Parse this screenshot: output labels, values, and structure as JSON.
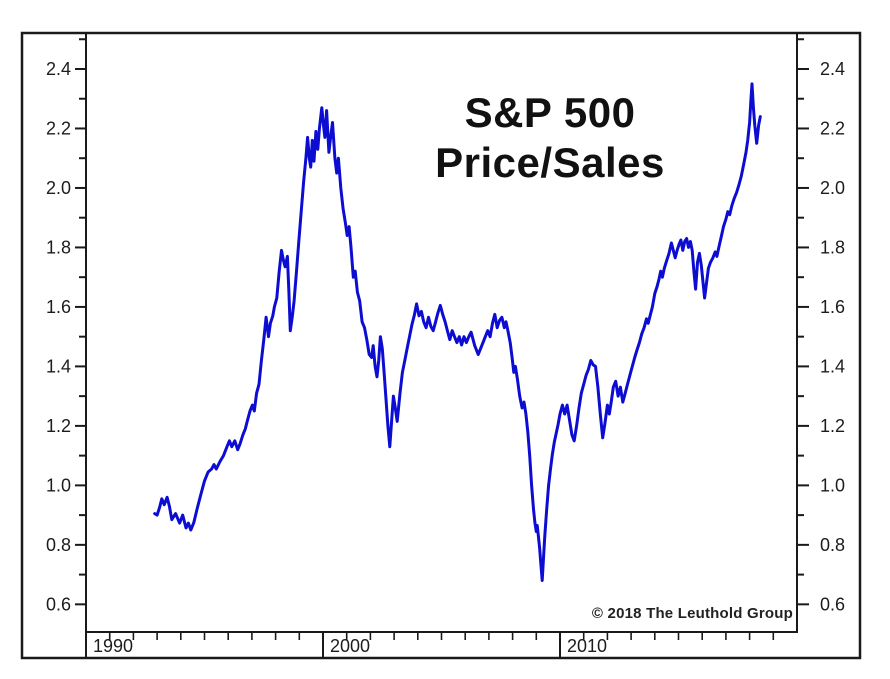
{
  "title": {
    "line1": "S&P 500",
    "line2": "Price/Sales"
  },
  "copyright": "© 2018 The Leuthold Group",
  "colors": {
    "line": "#0d0dd2",
    "frame": "#1a1a1a",
    "text": "#1c1c1c",
    "background": "#ffffff"
  },
  "chart_data": {
    "type": "line",
    "title": "S&P 500 Price/Sales",
    "series_name": "S&P 500 Price/Sales ratio",
    "grid": false,
    "legend": "none",
    "x_axis": {
      "style": "calendar-strip",
      "range_years": [
        1990,
        2020
      ],
      "year_tick_step": 1,
      "decades": [
        {
          "year": 1990,
          "label": "1990"
        },
        {
          "year": 2000,
          "label": "2000"
        },
        {
          "year": 2010,
          "label": "2010"
        }
      ]
    },
    "y_axis": {
      "sides": [
        "left",
        "right"
      ],
      "major_ticks": [
        0.6,
        0.8,
        1.0,
        1.2,
        1.4,
        1.6,
        1.8,
        2.0,
        2.2,
        2.4
      ],
      "minor_tick_step": 0.1,
      "visible_range": [
        0.507,
        2.521
      ],
      "label_decimals": 1
    },
    "points": [
      [
        1992.9,
        0.905
      ],
      [
        1993.0,
        0.9
      ],
      [
        1993.1,
        0.925
      ],
      [
        1993.2,
        0.955
      ],
      [
        1993.3,
        0.935
      ],
      [
        1993.42,
        0.96
      ],
      [
        1993.52,
        0.93
      ],
      [
        1993.62,
        0.885
      ],
      [
        1993.78,
        0.905
      ],
      [
        1993.95,
        0.873
      ],
      [
        1994.08,
        0.9
      ],
      [
        1994.22,
        0.857
      ],
      [
        1994.32,
        0.873
      ],
      [
        1994.42,
        0.85
      ],
      [
        1994.55,
        0.875
      ],
      [
        1994.7,
        0.925
      ],
      [
        1994.85,
        0.97
      ],
      [
        1995.0,
        1.015
      ],
      [
        1995.15,
        1.045
      ],
      [
        1995.3,
        1.055
      ],
      [
        1995.4,
        1.07
      ],
      [
        1995.5,
        1.055
      ],
      [
        1995.65,
        1.08
      ],
      [
        1995.8,
        1.1
      ],
      [
        1995.95,
        1.13
      ],
      [
        1996.05,
        1.15
      ],
      [
        1996.15,
        1.13
      ],
      [
        1996.28,
        1.15
      ],
      [
        1996.4,
        1.12
      ],
      [
        1996.5,
        1.14
      ],
      [
        1996.62,
        1.17
      ],
      [
        1996.72,
        1.19
      ],
      [
        1996.82,
        1.22
      ],
      [
        1996.92,
        1.25
      ],
      [
        1997.02,
        1.27
      ],
      [
        1997.1,
        1.25
      ],
      [
        1997.2,
        1.31
      ],
      [
        1997.3,
        1.34
      ],
      [
        1997.4,
        1.42
      ],
      [
        1997.5,
        1.49
      ],
      [
        1997.6,
        1.565
      ],
      [
        1997.7,
        1.5
      ],
      [
        1997.78,
        1.545
      ],
      [
        1997.88,
        1.57
      ],
      [
        1997.95,
        1.6
      ],
      [
        1998.05,
        1.63
      ],
      [
        1998.15,
        1.72
      ],
      [
        1998.25,
        1.79
      ],
      [
        1998.32,
        1.76
      ],
      [
        1998.4,
        1.735
      ],
      [
        1998.5,
        1.77
      ],
      [
        1998.56,
        1.65
      ],
      [
        1998.62,
        1.52
      ],
      [
        1998.7,
        1.565
      ],
      [
        1998.78,
        1.62
      ],
      [
        1998.88,
        1.72
      ],
      [
        1998.98,
        1.82
      ],
      [
        1999.08,
        1.92
      ],
      [
        1999.18,
        2.02
      ],
      [
        1999.28,
        2.1
      ],
      [
        1999.35,
        2.17
      ],
      [
        1999.42,
        2.1
      ],
      [
        1999.48,
        2.07
      ],
      [
        1999.55,
        2.16
      ],
      [
        1999.62,
        2.09
      ],
      [
        1999.7,
        2.19
      ],
      [
        1999.78,
        2.13
      ],
      [
        1999.85,
        2.2
      ],
      [
        1999.95,
        2.27
      ],
      [
        2000.02,
        2.21
      ],
      [
        2000.08,
        2.17
      ],
      [
        2000.15,
        2.26
      ],
      [
        2000.25,
        2.12
      ],
      [
        2000.32,
        2.17
      ],
      [
        2000.4,
        2.22
      ],
      [
        2000.5,
        2.1
      ],
      [
        2000.58,
        2.05
      ],
      [
        2000.65,
        2.1
      ],
      [
        2000.75,
        2.0
      ],
      [
        2000.85,
        1.93
      ],
      [
        2000.95,
        1.88
      ],
      [
        2001.02,
        1.84
      ],
      [
        2001.1,
        1.87
      ],
      [
        2001.18,
        1.8
      ],
      [
        2001.28,
        1.7
      ],
      [
        2001.36,
        1.72
      ],
      [
        2001.45,
        1.65
      ],
      [
        2001.55,
        1.62
      ],
      [
        2001.65,
        1.55
      ],
      [
        2001.75,
        1.53
      ],
      [
        2001.85,
        1.49
      ],
      [
        2001.95,
        1.44
      ],
      [
        2002.05,
        1.43
      ],
      [
        2002.12,
        1.47
      ],
      [
        2002.2,
        1.4
      ],
      [
        2002.28,
        1.365
      ],
      [
        2002.35,
        1.42
      ],
      [
        2002.42,
        1.5
      ],
      [
        2002.5,
        1.46
      ],
      [
        2002.58,
        1.38
      ],
      [
        2002.66,
        1.29
      ],
      [
        2002.74,
        1.2
      ],
      [
        2002.82,
        1.13
      ],
      [
        2002.9,
        1.22
      ],
      [
        2002.97,
        1.3
      ],
      [
        2003.05,
        1.26
      ],
      [
        2003.13,
        1.215
      ],
      [
        2003.25,
        1.31
      ],
      [
        2003.35,
        1.38
      ],
      [
        2003.45,
        1.42
      ],
      [
        2003.55,
        1.46
      ],
      [
        2003.65,
        1.5
      ],
      [
        2003.75,
        1.54
      ],
      [
        2003.85,
        1.57
      ],
      [
        2003.95,
        1.61
      ],
      [
        2004.05,
        1.57
      ],
      [
        2004.15,
        1.585
      ],
      [
        2004.25,
        1.55
      ],
      [
        2004.35,
        1.53
      ],
      [
        2004.45,
        1.565
      ],
      [
        2004.55,
        1.535
      ],
      [
        2004.65,
        1.52
      ],
      [
        2004.75,
        1.55
      ],
      [
        2004.85,
        1.58
      ],
      [
        2004.95,
        1.605
      ],
      [
        2005.05,
        1.575
      ],
      [
        2005.15,
        1.55
      ],
      [
        2005.25,
        1.52
      ],
      [
        2005.35,
        1.49
      ],
      [
        2005.45,
        1.52
      ],
      [
        2005.55,
        1.5
      ],
      [
        2005.65,
        1.48
      ],
      [
        2005.75,
        1.5
      ],
      [
        2005.85,
        1.472
      ],
      [
        2005.95,
        1.5
      ],
      [
        2006.05,
        1.48
      ],
      [
        2006.15,
        1.5
      ],
      [
        2006.25,
        1.515
      ],
      [
        2006.4,
        1.47
      ],
      [
        2006.55,
        1.44
      ],
      [
        2006.65,
        1.46
      ],
      [
        2006.75,
        1.48
      ],
      [
        2006.85,
        1.5
      ],
      [
        2006.95,
        1.52
      ],
      [
        2007.05,
        1.5
      ],
      [
        2007.15,
        1.545
      ],
      [
        2007.25,
        1.575
      ],
      [
        2007.35,
        1.53
      ],
      [
        2007.45,
        1.555
      ],
      [
        2007.55,
        1.565
      ],
      [
        2007.65,
        1.53
      ],
      [
        2007.72,
        1.55
      ],
      [
        2007.8,
        1.52
      ],
      [
        2007.9,
        1.48
      ],
      [
        2007.98,
        1.43
      ],
      [
        2008.05,
        1.38
      ],
      [
        2008.12,
        1.4
      ],
      [
        2008.2,
        1.36
      ],
      [
        2008.3,
        1.3
      ],
      [
        2008.4,
        1.26
      ],
      [
        2008.48,
        1.28
      ],
      [
        2008.56,
        1.24
      ],
      [
        2008.64,
        1.18
      ],
      [
        2008.72,
        1.1
      ],
      [
        2008.8,
        1.0
      ],
      [
        2008.88,
        0.92
      ],
      [
        2008.94,
        0.875
      ],
      [
        2009.0,
        0.845
      ],
      [
        2009.04,
        0.865
      ],
      [
        2009.08,
        0.835
      ],
      [
        2009.14,
        0.79
      ],
      [
        2009.2,
        0.73
      ],
      [
        2009.25,
        0.68
      ],
      [
        2009.3,
        0.75
      ],
      [
        2009.36,
        0.83
      ],
      [
        2009.44,
        0.92
      ],
      [
        2009.52,
        1.0
      ],
      [
        2009.6,
        1.055
      ],
      [
        2009.68,
        1.105
      ],
      [
        2009.76,
        1.145
      ],
      [
        2009.84,
        1.175
      ],
      [
        2009.92,
        1.205
      ],
      [
        2010.0,
        1.24
      ],
      [
        2010.1,
        1.27
      ],
      [
        2010.2,
        1.24
      ],
      [
        2010.3,
        1.27
      ],
      [
        2010.4,
        1.22
      ],
      [
        2010.5,
        1.17
      ],
      [
        2010.6,
        1.15
      ],
      [
        2010.7,
        1.2
      ],
      [
        2010.8,
        1.26
      ],
      [
        2010.9,
        1.31
      ],
      [
        2011.0,
        1.34
      ],
      [
        2011.1,
        1.37
      ],
      [
        2011.2,
        1.39
      ],
      [
        2011.3,
        1.42
      ],
      [
        2011.4,
        1.405
      ],
      [
        2011.5,
        1.4
      ],
      [
        2011.6,
        1.33
      ],
      [
        2011.7,
        1.24
      ],
      [
        2011.8,
        1.16
      ],
      [
        2011.9,
        1.21
      ],
      [
        2012.0,
        1.27
      ],
      [
        2012.08,
        1.24
      ],
      [
        2012.16,
        1.28
      ],
      [
        2012.25,
        1.33
      ],
      [
        2012.35,
        1.35
      ],
      [
        2012.45,
        1.3
      ],
      [
        2012.55,
        1.33
      ],
      [
        2012.65,
        1.28
      ],
      [
        2012.75,
        1.31
      ],
      [
        2012.85,
        1.34
      ],
      [
        2012.95,
        1.37
      ],
      [
        2013.05,
        1.4
      ],
      [
        2013.15,
        1.43
      ],
      [
        2013.25,
        1.455
      ],
      [
        2013.35,
        1.48
      ],
      [
        2013.45,
        1.51
      ],
      [
        2013.55,
        1.53
      ],
      [
        2013.65,
        1.56
      ],
      [
        2013.72,
        1.545
      ],
      [
        2013.8,
        1.57
      ],
      [
        2013.9,
        1.6
      ],
      [
        2014.0,
        1.645
      ],
      [
        2014.1,
        1.67
      ],
      [
        2014.18,
        1.695
      ],
      [
        2014.25,
        1.72
      ],
      [
        2014.32,
        1.7
      ],
      [
        2014.4,
        1.73
      ],
      [
        2014.5,
        1.755
      ],
      [
        2014.6,
        1.78
      ],
      [
        2014.7,
        1.815
      ],
      [
        2014.78,
        1.79
      ],
      [
        2014.86,
        1.765
      ],
      [
        2014.94,
        1.79
      ],
      [
        2015.02,
        1.81
      ],
      [
        2015.1,
        1.825
      ],
      [
        2015.18,
        1.79
      ],
      [
        2015.26,
        1.82
      ],
      [
        2015.34,
        1.83
      ],
      [
        2015.42,
        1.8
      ],
      [
        2015.5,
        1.82
      ],
      [
        2015.58,
        1.79
      ],
      [
        2015.65,
        1.72
      ],
      [
        2015.72,
        1.66
      ],
      [
        2015.8,
        1.75
      ],
      [
        2015.88,
        1.78
      ],
      [
        2015.96,
        1.74
      ],
      [
        2016.04,
        1.68
      ],
      [
        2016.1,
        1.63
      ],
      [
        2016.18,
        1.68
      ],
      [
        2016.26,
        1.73
      ],
      [
        2016.35,
        1.75
      ],
      [
        2016.45,
        1.765
      ],
      [
        2016.55,
        1.785
      ],
      [
        2016.62,
        1.77
      ],
      [
        2016.7,
        1.8
      ],
      [
        2016.8,
        1.835
      ],
      [
        2016.9,
        1.87
      ],
      [
        2017.0,
        1.895
      ],
      [
        2017.08,
        1.92
      ],
      [
        2017.16,
        1.91
      ],
      [
        2017.25,
        1.94
      ],
      [
        2017.35,
        1.965
      ],
      [
        2017.45,
        1.985
      ],
      [
        2017.55,
        2.01
      ],
      [
        2017.65,
        2.04
      ],
      [
        2017.75,
        2.08
      ],
      [
        2017.85,
        2.12
      ],
      [
        2017.92,
        2.16
      ],
      [
        2018.0,
        2.22
      ],
      [
        2018.06,
        2.3
      ],
      [
        2018.1,
        2.35
      ],
      [
        2018.16,
        2.27
      ],
      [
        2018.22,
        2.21
      ],
      [
        2018.3,
        2.15
      ],
      [
        2018.38,
        2.21
      ],
      [
        2018.45,
        2.24
      ]
    ]
  }
}
